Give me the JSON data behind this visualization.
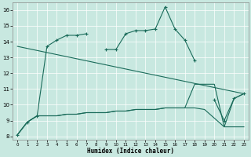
{
  "xlabel": "Humidex (Indice chaleur)",
  "background_color": "#c8e8e0",
  "line_color": "#1a6b5a",
  "xlim": [
    -0.5,
    23.5
  ],
  "ylim": [
    7.8,
    16.5
  ],
  "xtick_vals": [
    0,
    1,
    2,
    3,
    4,
    5,
    6,
    7,
    8,
    9,
    10,
    11,
    12,
    13,
    14,
    15,
    16,
    17,
    18,
    19,
    20,
    21,
    22,
    23
  ],
  "ytick_vals": [
    8,
    9,
    10,
    11,
    12,
    13,
    14,
    15,
    16
  ],
  "line1_segments": [
    {
      "x": [
        0,
        1,
        2,
        3,
        4,
        5,
        6,
        7
      ],
      "y": [
        8.1,
        8.9,
        9.3,
        13.7,
        14.1,
        14.4,
        14.4,
        14.5
      ]
    },
    {
      "x": [
        9,
        10,
        11,
        12,
        13,
        14,
        15,
        16,
        17,
        18
      ],
      "y": [
        13.5,
        13.5,
        14.5,
        14.7,
        14.7,
        14.8,
        16.2,
        14.8,
        14.1,
        12.8
      ]
    },
    {
      "x": [
        20,
        21,
        22,
        23
      ],
      "y": [
        10.3,
        9.0,
        10.4,
        10.7
      ]
    }
  ],
  "line2_x": [
    0,
    1,
    2,
    3,
    4,
    5,
    6,
    7,
    9,
    10,
    11,
    12,
    13,
    14,
    15,
    16,
    17,
    18,
    19,
    21,
    22,
    23
  ],
  "line2_y": [
    8.1,
    8.9,
    9.3,
    9.3,
    9.3,
    9.4,
    9.4,
    9.5,
    9.5,
    9.6,
    9.6,
    9.7,
    9.7,
    9.7,
    9.8,
    9.8,
    9.8,
    9.8,
    9.7,
    8.6,
    8.6,
    8.6
  ],
  "line3_x": [
    0,
    1,
    2,
    3,
    4,
    5,
    6,
    7,
    9,
    10,
    11,
    12,
    13,
    14,
    15,
    16,
    17,
    18,
    20,
    21,
    22,
    23
  ],
  "line3_y": [
    8.1,
    8.9,
    9.3,
    9.3,
    9.3,
    9.4,
    9.4,
    9.5,
    9.5,
    9.6,
    9.6,
    9.7,
    9.7,
    9.7,
    9.8,
    9.8,
    9.8,
    11.3,
    11.3,
    8.6,
    10.4,
    10.7
  ],
  "line4_x": [
    0,
    23
  ],
  "line4_y": [
    13.7,
    10.7
  ]
}
